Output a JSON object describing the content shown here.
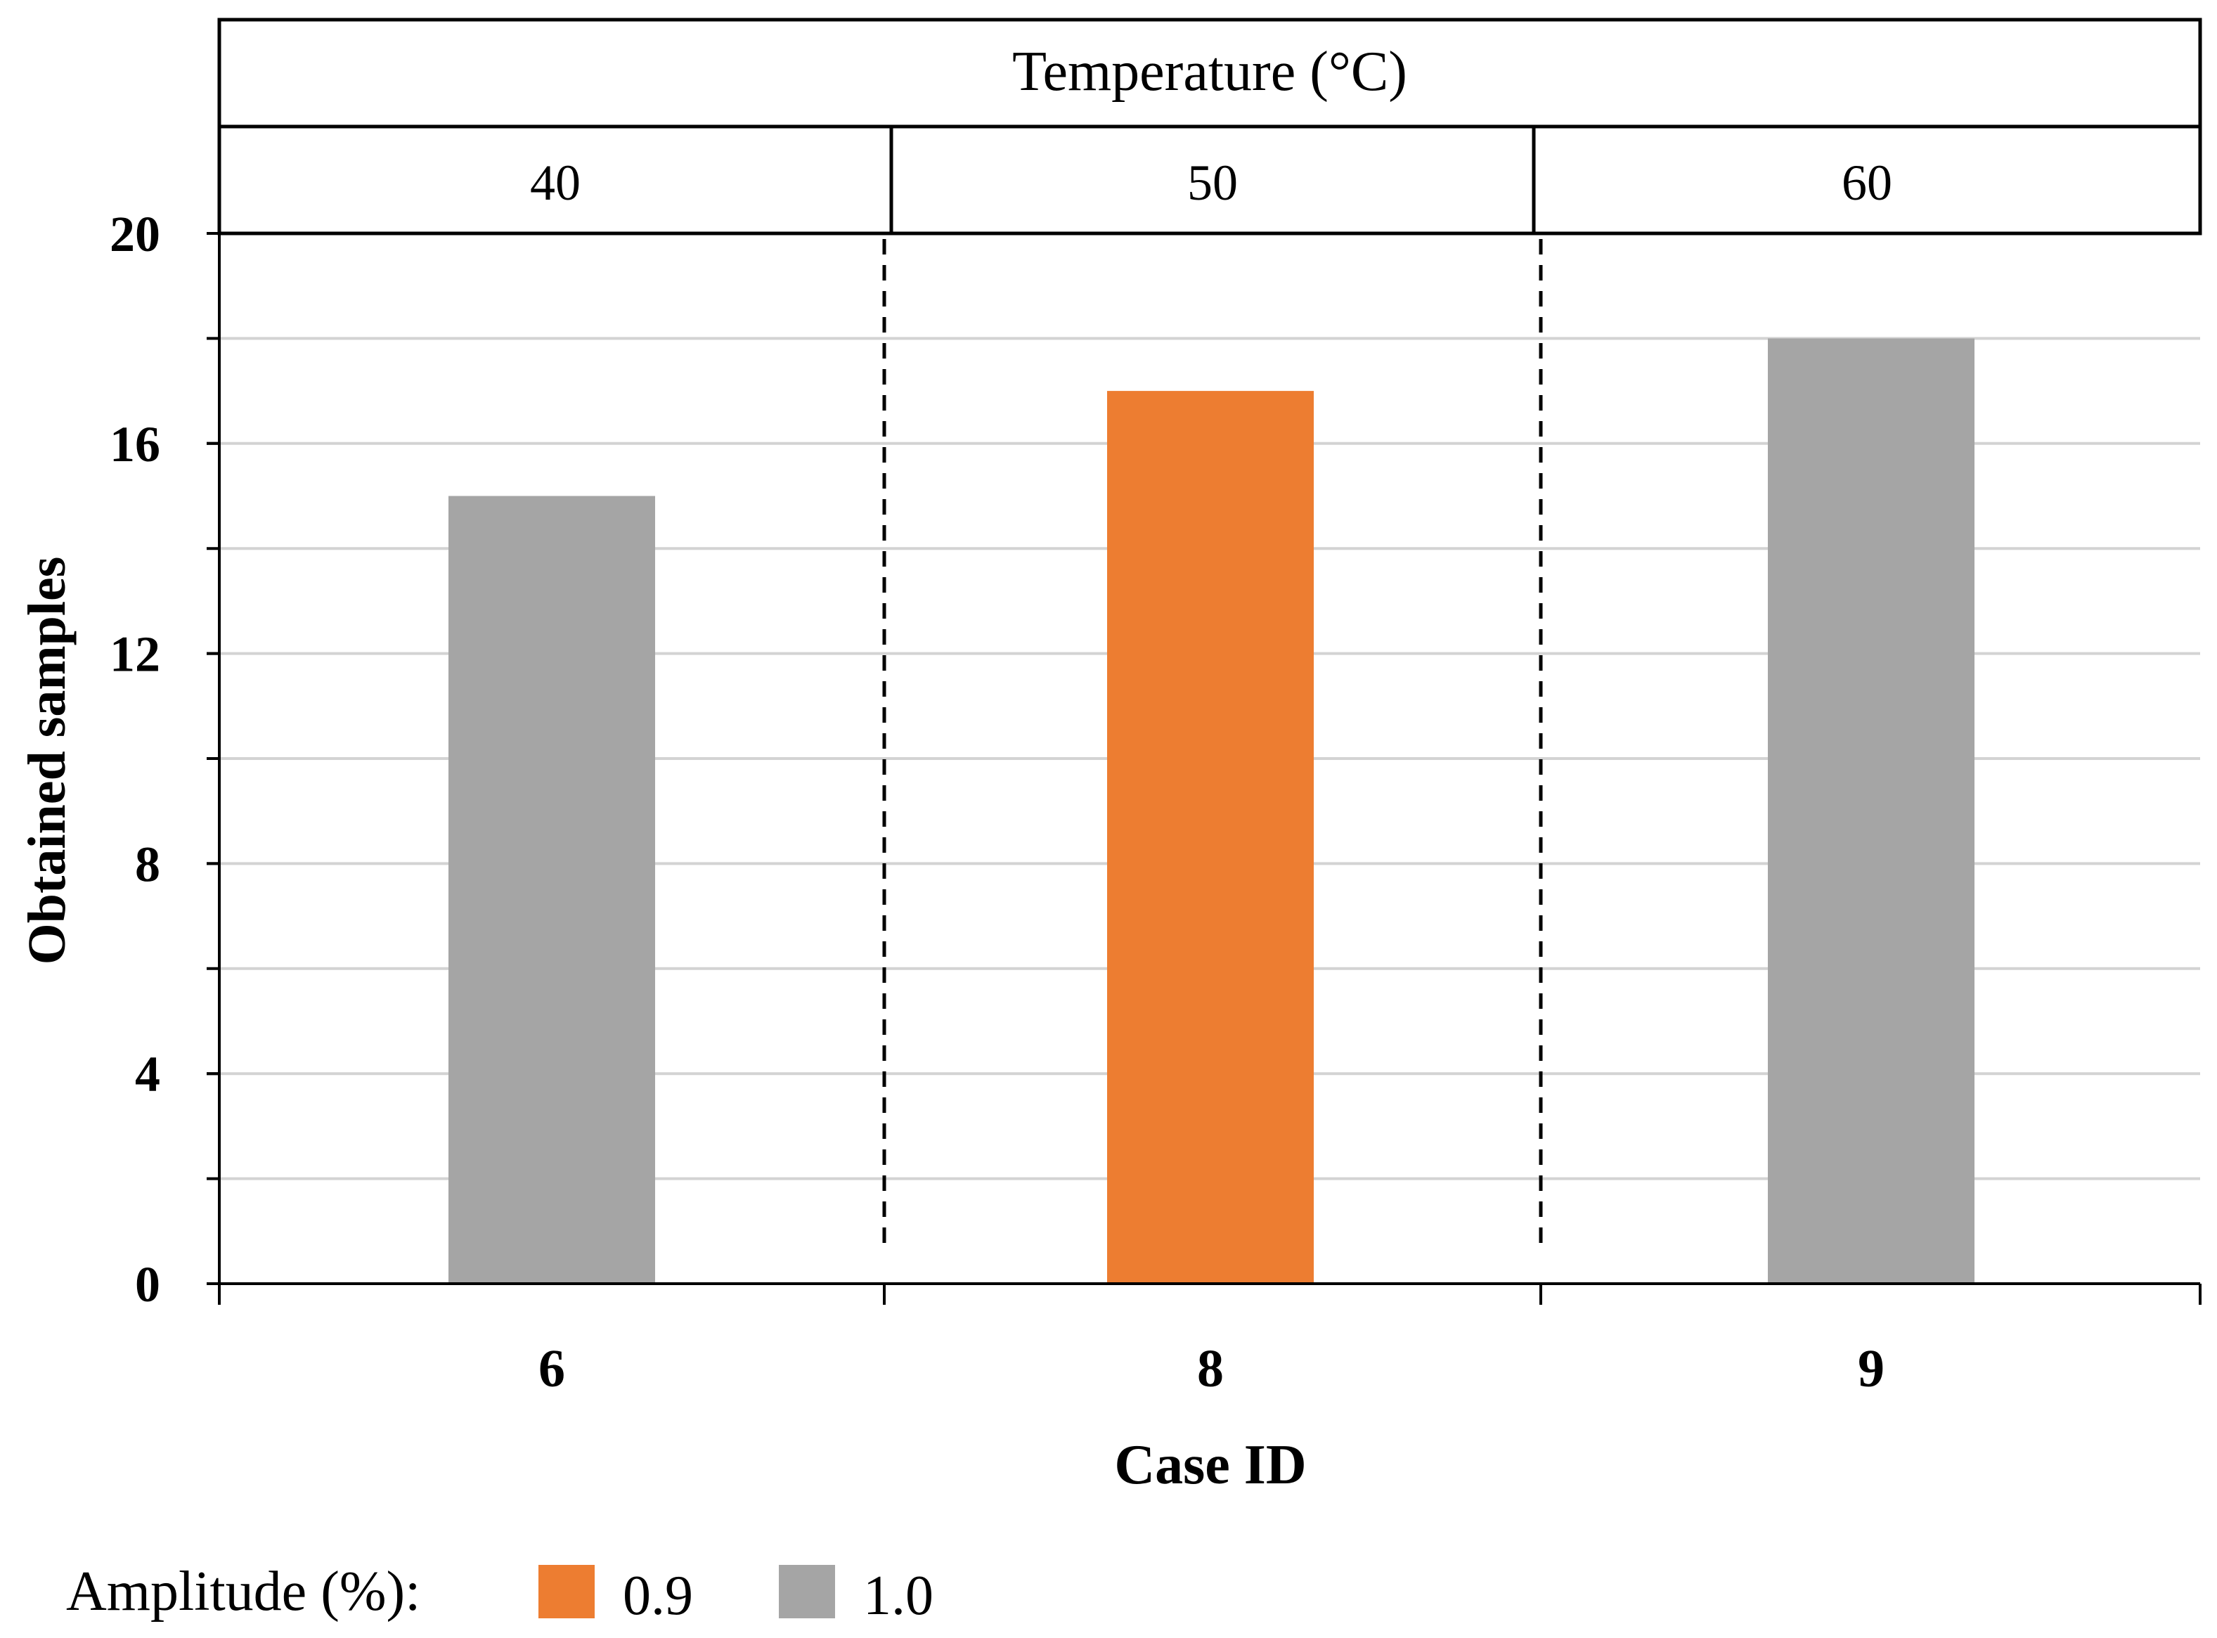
{
  "chart_data": {
    "type": "bar",
    "title": "",
    "xlabel": "Case ID",
    "ylabel": "Obtained samples",
    "categories": [
      "6",
      "8",
      "9"
    ],
    "values": [
      15,
      17,
      18
    ],
    "amplitude_group": [
      "1.0",
      "0.9",
      "1.0"
    ],
    "ylim": [
      0,
      20
    ],
    "yticks": [
      "0",
      "4",
      "8",
      "12",
      "16",
      "20"
    ],
    "minor_gridlines_every": 2,
    "grid": true,
    "top_header": {
      "title": "Temperature (°C)",
      "groups": [
        "40",
        "50",
        "60"
      ]
    },
    "legend": {
      "title": "Amplitude (%):",
      "placement": "bottom-left",
      "entries": [
        {
          "label": "0.9",
          "color": "#ED7D31"
        },
        {
          "label": "1.0",
          "color": "#A5A5A5"
        }
      ]
    },
    "colors": {
      "0.9": "#ED7D31",
      "1.0": "#A5A5A5",
      "grid": "#d3d3d3",
      "axis": "#000000"
    }
  }
}
